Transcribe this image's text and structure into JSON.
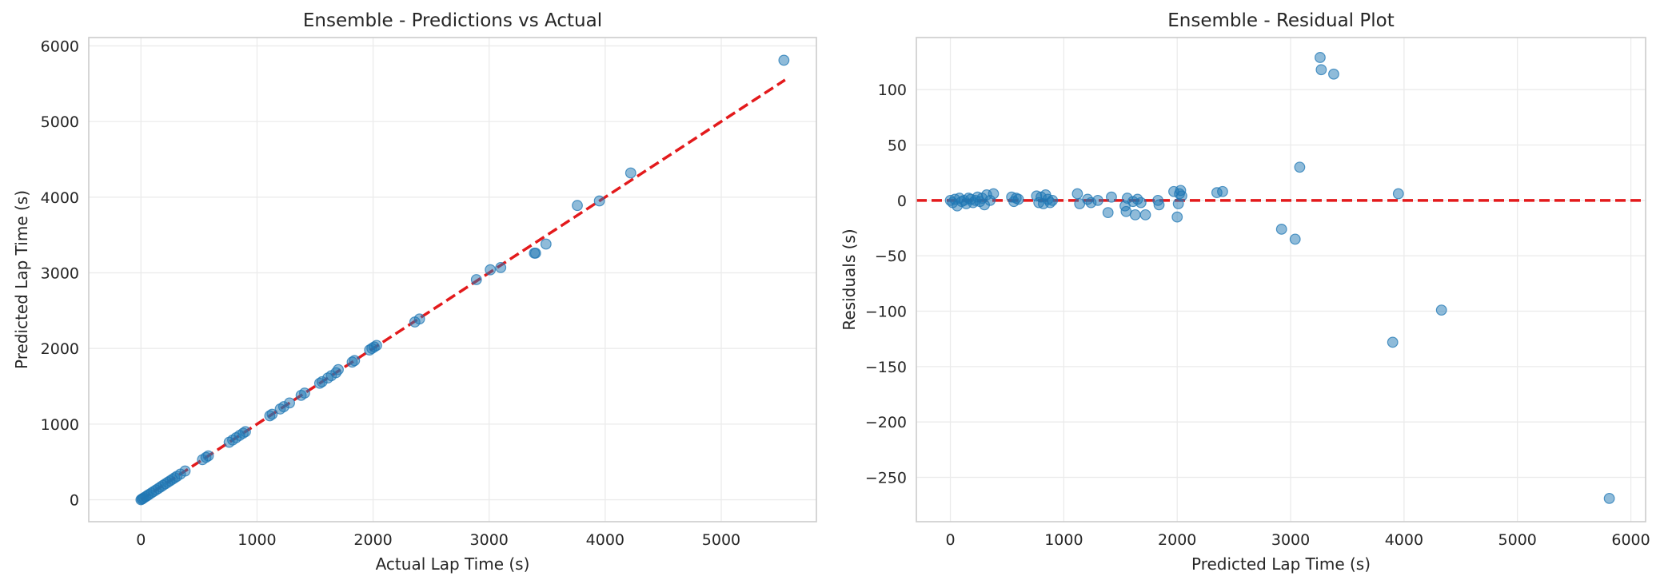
{
  "chart_data": [
    {
      "type": "scatter",
      "title": "Ensemble - Predictions vs Actual",
      "xlabel": "Actual Lap Time (s)",
      "ylabel": "Predicted Lap Time (s)",
      "xlim": [
        -450,
        5820
      ],
      "ylim": [
        -290,
        6110
      ],
      "xticks": [
        0,
        1000,
        2000,
        3000,
        4000,
        5000
      ],
      "yticks": [
        0,
        1000,
        2000,
        3000,
        4000,
        5000,
        6000
      ],
      "grid": true,
      "series_color": "#1f77b4",
      "reference_line": {
        "style": "dashed",
        "color": "#e31a1c",
        "x": [
          0,
          5550
        ],
        "y": [
          0,
          5550
        ]
      },
      "points": {
        "x": [
          0,
          8,
          15,
          25,
          40,
          55,
          70,
          90,
          110,
          130,
          150,
          170,
          190,
          210,
          230,
          250,
          270,
          290,
          310,
          340,
          380,
          530,
          560,
          580,
          760,
          790,
          820,
          850,
          880,
          900,
          1110,
          1130,
          1200,
          1230,
          1280,
          1380,
          1410,
          1540,
          1560,
          1610,
          1640,
          1680,
          1700,
          1820,
          1840,
          1970,
          1990,
          2010,
          2030,
          2360,
          2400,
          2890,
          3010,
          3100,
          3390,
          3400,
          3490,
          3760,
          3950,
          4220,
          5540
        ],
        "y": [
          0,
          8,
          15,
          25,
          40,
          55,
          70,
          90,
          110,
          130,
          150,
          170,
          190,
          210,
          230,
          250,
          270,
          290,
          310,
          340,
          380,
          530,
          560,
          580,
          760,
          790,
          820,
          850,
          880,
          900,
          1110,
          1130,
          1200,
          1230,
          1280,
          1380,
          1410,
          1540,
          1560,
          1610,
          1640,
          1680,
          1720,
          1820,
          1840,
          1980,
          2000,
          2020,
          2040,
          2350,
          2390,
          2910,
          3040,
          3070,
          3260,
          3260,
          3380,
          3890,
          3950,
          4320,
          5810
        ]
      }
    },
    {
      "type": "scatter",
      "title": "Ensemble - Residual Plot",
      "xlabel": "Predicted Lap Time (s)",
      "ylabel": "Residuals (s)",
      "xlim": [
        -300,
        6130
      ],
      "ylim": [
        -290,
        147
      ],
      "xticks": [
        0,
        1000,
        2000,
        3000,
        4000,
        5000,
        6000
      ],
      "yticks": [
        100,
        50,
        0,
        -50,
        -100,
        -150,
        -200,
        -250
      ],
      "ytick_labels": [
        "100",
        "50",
        "0",
        "−50",
        "−100",
        "−150",
        "−200",
        "−250"
      ],
      "grid": true,
      "series_color": "#1f77b4",
      "reference_line": {
        "style": "dashed",
        "color": "#e31a1c",
        "y": 0
      },
      "points": {
        "x": [
          0,
          20,
          40,
          60,
          80,
          100,
          120,
          140,
          160,
          180,
          200,
          220,
          240,
          260,
          280,
          300,
          320,
          350,
          380,
          540,
          560,
          580,
          600,
          760,
          780,
          800,
          820,
          840,
          860,
          880,
          900,
          1120,
          1140,
          1210,
          1240,
          1300,
          1390,
          1420,
          1540,
          1550,
          1560,
          1610,
          1630,
          1650,
          1680,
          1720,
          1830,
          1840,
          1970,
          2000,
          2010,
          2020,
          2030,
          2040,
          2350,
          2400,
          2920,
          3040,
          3080,
          3260,
          3270,
          3380,
          3900,
          3950,
          4330,
          5810
        ],
        "y": [
          0,
          -2,
          1,
          -5,
          2,
          -1,
          0,
          -3,
          2,
          1,
          -2,
          0,
          3,
          -1,
          2,
          -4,
          5,
          0,
          6,
          3,
          -1,
          2,
          1,
          4,
          -2,
          3,
          -3,
          5,
          1,
          -2,
          0,
          6,
          -3,
          1,
          -2,
          0,
          -11,
          3,
          -5,
          -10,
          2,
          -1,
          -13,
          1,
          -2,
          -13,
          0,
          -4,
          8,
          -15,
          -3,
          6,
          9,
          4,
          7,
          8,
          -26,
          -35,
          30,
          129,
          118,
          114,
          -128,
          6,
          -99,
          -269
        ]
      }
    }
  ]
}
